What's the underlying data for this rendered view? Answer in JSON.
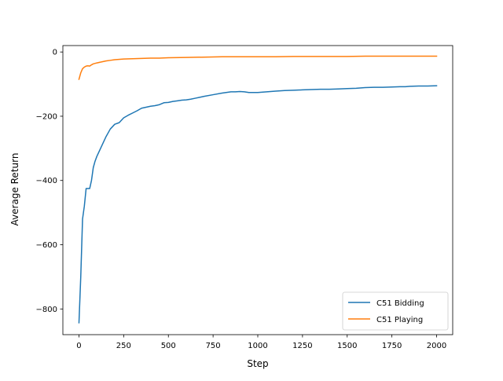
{
  "chart_data": {
    "type": "line",
    "title": "",
    "xlabel": "Step",
    "ylabel": "Average Return",
    "xlim": [
      -90,
      2090
    ],
    "ylim": [
      -880,
      20
    ],
    "x_ticks": [
      0,
      250,
      500,
      750,
      1000,
      1250,
      1500,
      1750,
      2000
    ],
    "y_ticks": [
      0,
      -200,
      -400,
      -600,
      -800
    ],
    "x_tick_labels": [
      "0",
      "250",
      "500",
      "750",
      "1000",
      "1250",
      "1500",
      "1750",
      "2000"
    ],
    "y_tick_labels": [
      "0",
      "−200",
      "−400",
      "−600",
      "−800"
    ],
    "grid": false,
    "legend_position": "bottom-right",
    "series": [
      {
        "name": "C51 Bidding",
        "color": "#1f77b4",
        "x": [
          0,
          10,
          20,
          30,
          40,
          50,
          60,
          70,
          80,
          90,
          100,
          125,
          150,
          175,
          200,
          225,
          250,
          275,
          300,
          325,
          350,
          375,
          400,
          425,
          450,
          475,
          500,
          525,
          550,
          575,
          600,
          625,
          650,
          675,
          700,
          750,
          800,
          850,
          875,
          900,
          925,
          950,
          1000,
          1050,
          1100,
          1150,
          1200,
          1250,
          1300,
          1350,
          1400,
          1450,
          1500,
          1550,
          1600,
          1650,
          1700,
          1750,
          1800,
          1825,
          1850,
          1900,
          1950,
          2000
        ],
        "y": [
          -843,
          -700,
          -520,
          -480,
          -425,
          -425,
          -425,
          -400,
          -360,
          -340,
          -325,
          -295,
          -265,
          -240,
          -225,
          -220,
          -205,
          -197,
          -190,
          -183,
          -175,
          -172,
          -169,
          -167,
          -164,
          -158,
          -157,
          -154,
          -152,
          -150,
          -149,
          -147,
          -144,
          -141,
          -138,
          -133,
          -128,
          -124,
          -124,
          -123,
          -124,
          -126,
          -126,
          -124,
          -122,
          -120,
          -119,
          -118,
          -117,
          -116,
          -116,
          -115,
          -114,
          -113,
          -111,
          -110,
          -110,
          -109,
          -108,
          -108,
          -107,
          -106,
          -106,
          -105
        ]
      },
      {
        "name": "C51 Playing",
        "color": "#ff7f0e",
        "x": [
          0,
          10,
          20,
          30,
          40,
          50,
          60,
          70,
          80,
          100,
          125,
          150,
          175,
          200,
          250,
          300,
          350,
          400,
          450,
          500,
          600,
          700,
          800,
          900,
          1000,
          1100,
          1200,
          1300,
          1400,
          1500,
          1600,
          1700,
          1800,
          1900,
          2000
        ],
        "y": [
          -85,
          -65,
          -52,
          -47,
          -44,
          -43,
          -44,
          -40,
          -37,
          -34,
          -31,
          -28,
          -26,
          -24,
          -22,
          -21,
          -20,
          -19,
          -19,
          -18,
          -17,
          -16,
          -15,
          -15,
          -15,
          -15,
          -14,
          -14,
          -14,
          -14,
          -13,
          -13,
          -13,
          -13,
          -13
        ]
      }
    ]
  }
}
